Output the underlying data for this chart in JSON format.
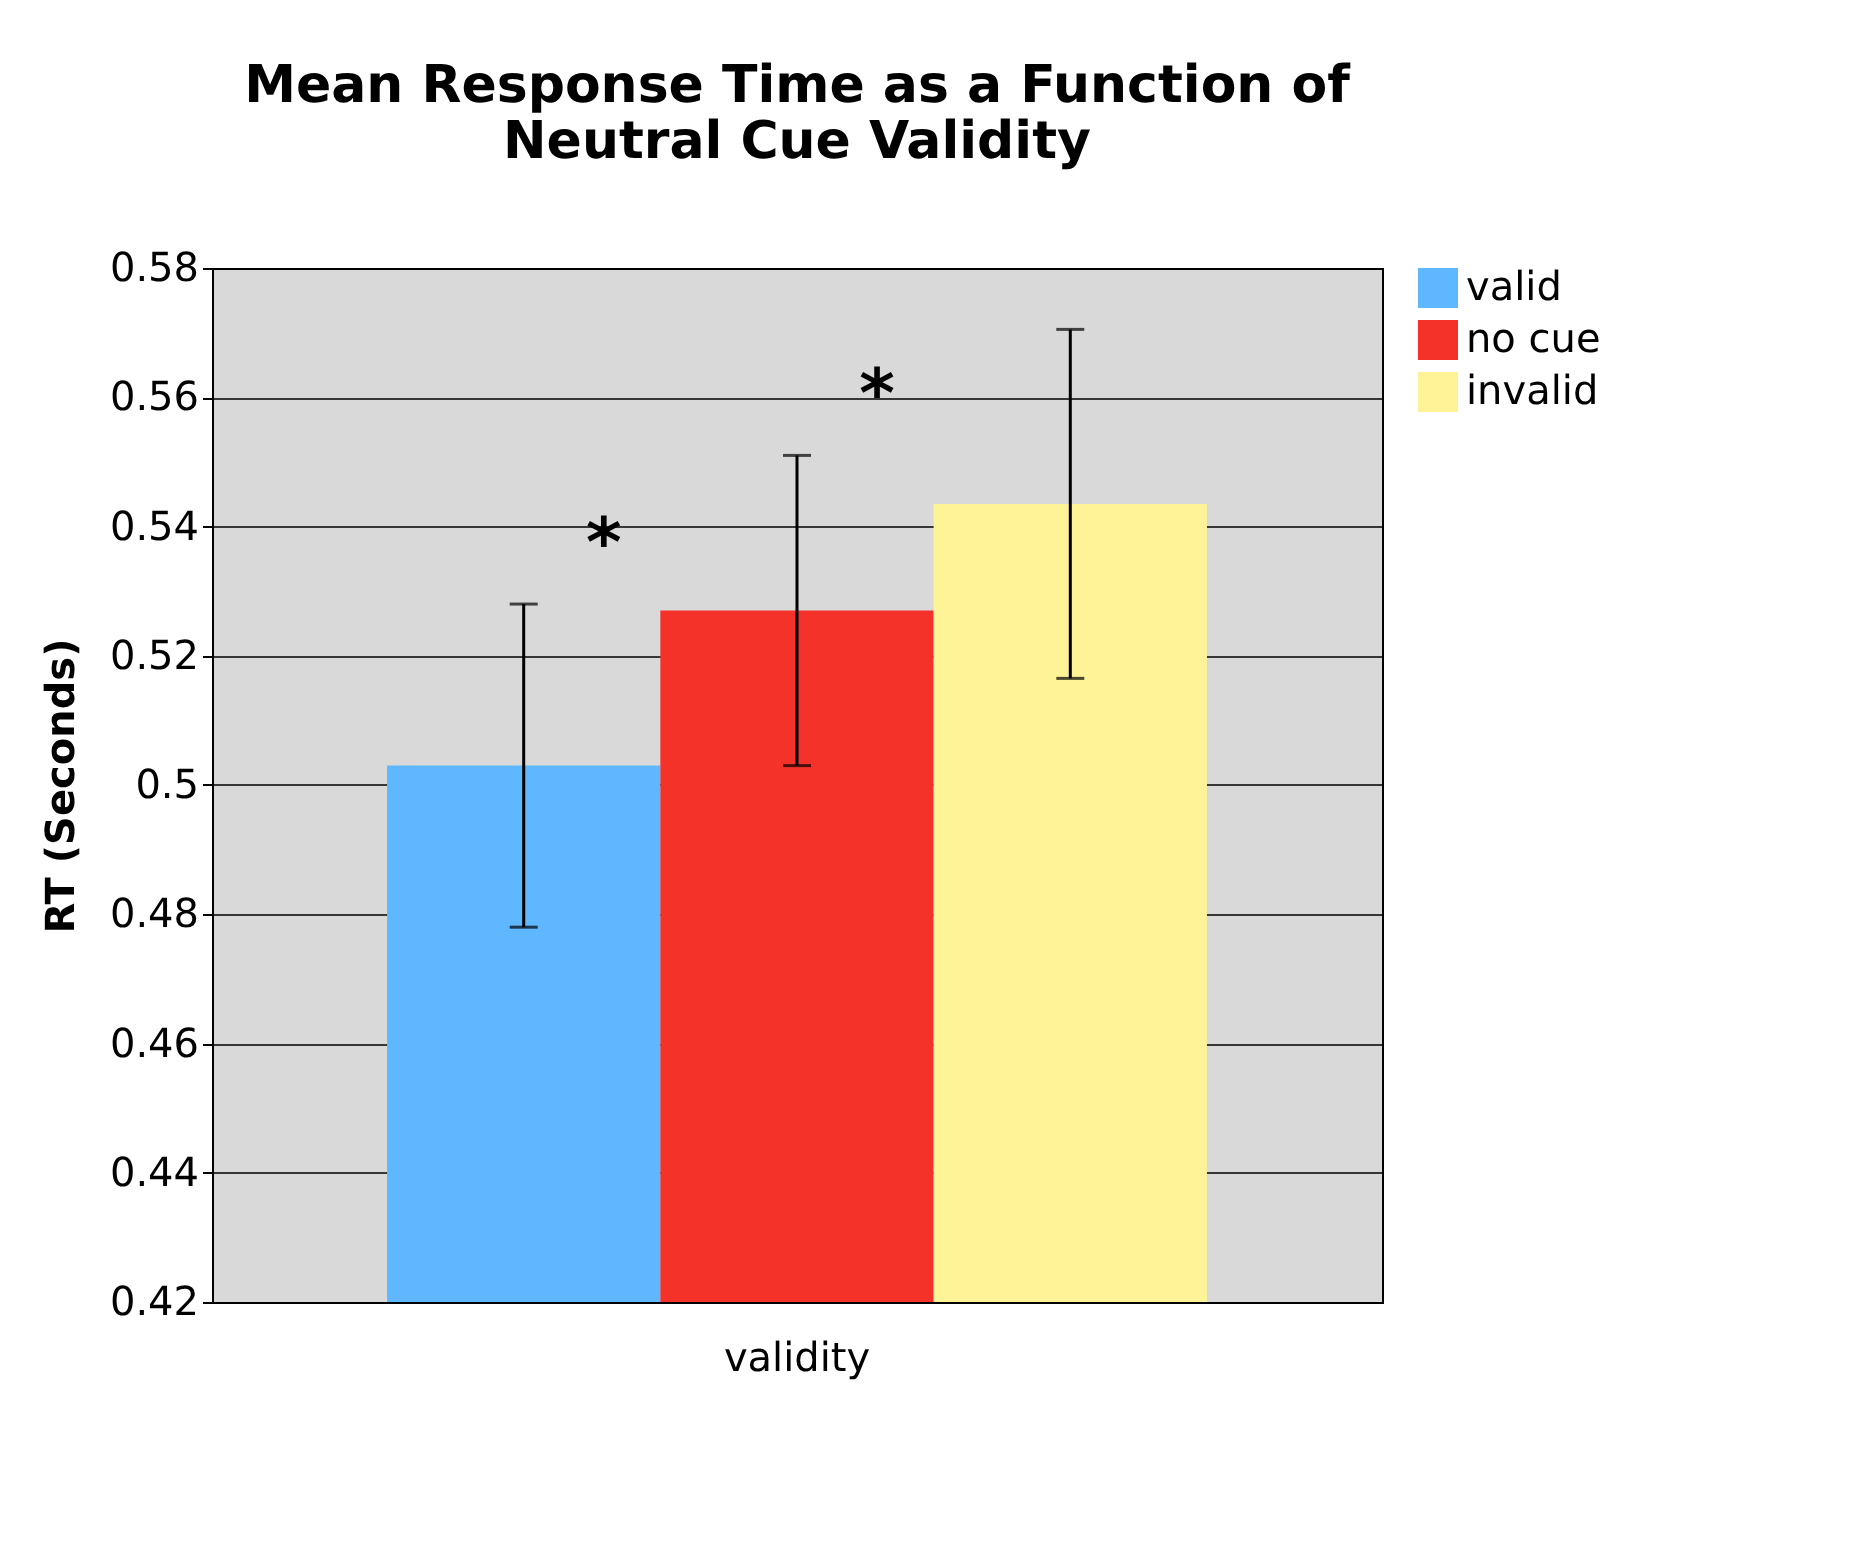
{
  "chart_data": {
    "type": "bar",
    "title": [
      "Mean Response Time as a Function of",
      "Neutral Cue Validity"
    ],
    "ylabel": "RT (Seconds)",
    "categories": [
      "validity"
    ],
    "series": [
      {
        "name": "valid",
        "color": "#5fb8ff",
        "values": [
          0.503
        ],
        "errors": [
          0.025
        ]
      },
      {
        "name": "no cue",
        "color": "#f5322a",
        "values": [
          0.527
        ],
        "errors": [
          0.024
        ]
      },
      {
        "name": "invalid",
        "color": "#fef396",
        "values": [
          0.5435
        ],
        "errors": [
          0.027
        ]
      }
    ],
    "ylim": [
      0.42,
      0.58
    ],
    "yticks": [
      0.42,
      0.44,
      0.46,
      0.48,
      {
        "value": 0.5,
        "label": "0.5"
      },
      0.52,
      0.54,
      0.56,
      0.58
    ],
    "grid": "y",
    "legend": "right",
    "annotations": [
      "*",
      "*"
    ]
  }
}
